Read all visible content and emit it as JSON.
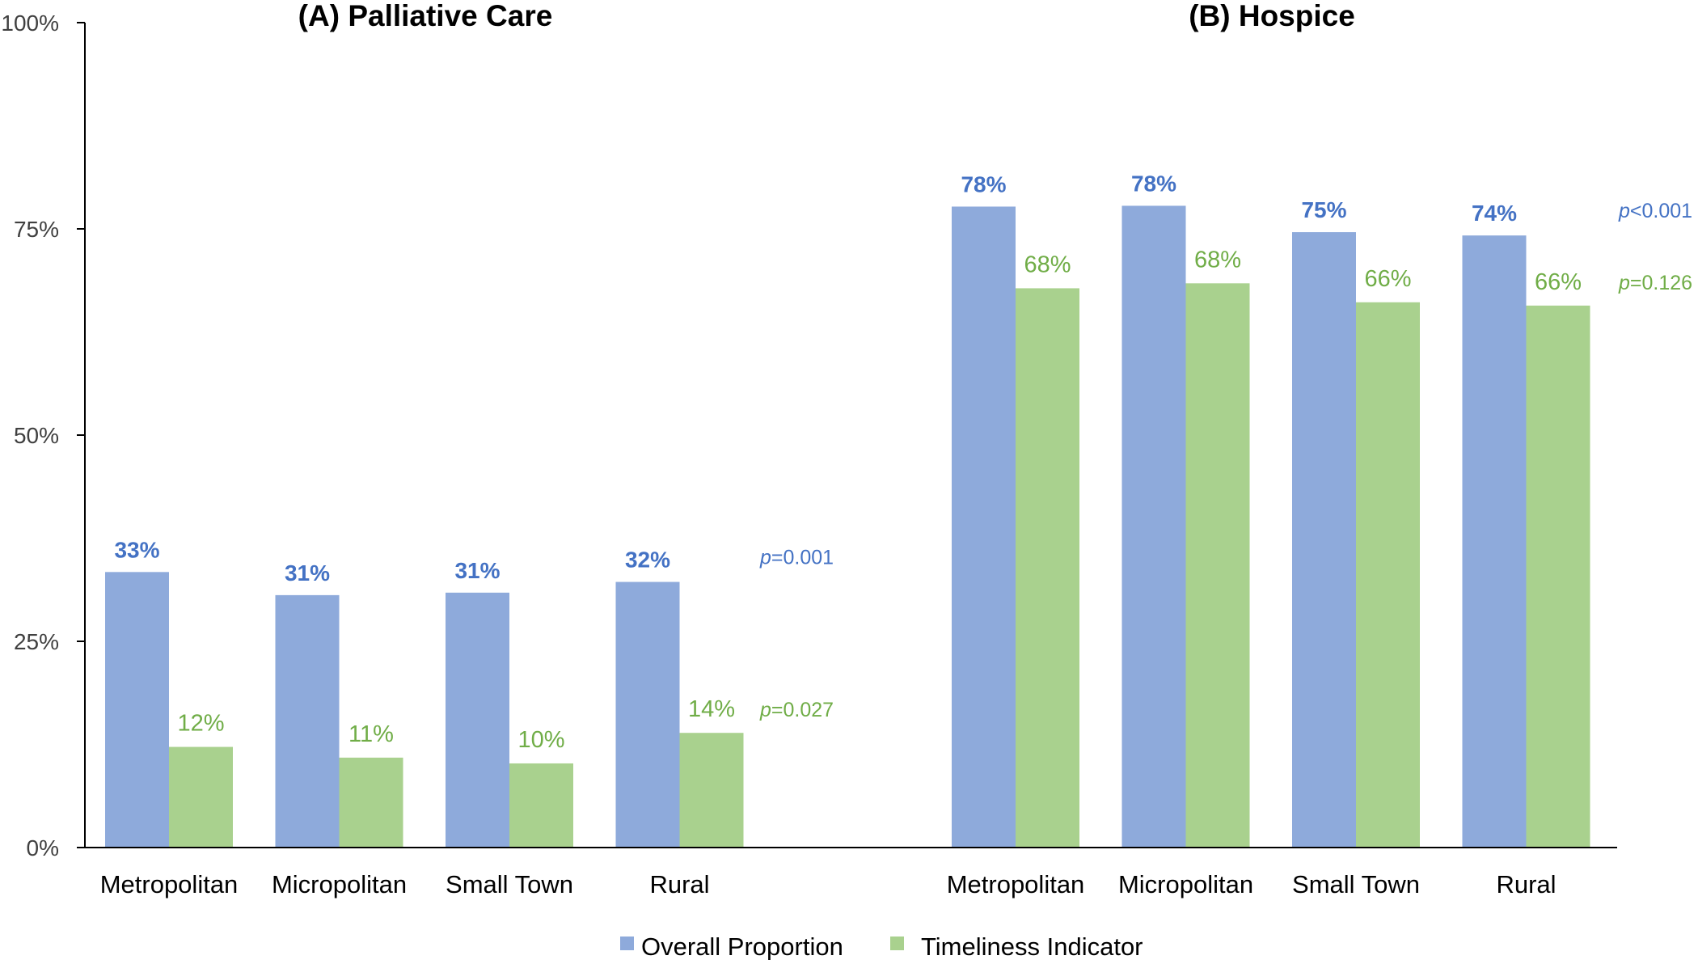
{
  "colors": {
    "overall": "#8eaadb",
    "timely": "#a9d18e",
    "overall_label": "#4472c4",
    "timely_label": "#70ad47",
    "axis": "#000000"
  },
  "chart_data": {
    "type": "bar",
    "ylim": [
      0,
      100
    ],
    "y_ticks": [
      {
        "value": 0,
        "label": "0%"
      },
      {
        "value": 25,
        "label": "25%"
      },
      {
        "value": 50,
        "label": "50%"
      },
      {
        "value": 75,
        "label": "75%"
      },
      {
        "value": 100,
        "label": "100%"
      }
    ],
    "legend": {
      "position": "bottom-center",
      "items": [
        "Overall Proportion",
        "Timeliness Indicator"
      ]
    },
    "panels": [
      {
        "title": "(A) Palliative Care",
        "categories": [
          "Metropolitan",
          "Micropolitan",
          "Small Town",
          "Rural"
        ],
        "series": [
          {
            "name": "Overall Proportion",
            "values": [
              33.4,
              30.6,
              30.9,
              32.2
            ],
            "labels": [
              "33%",
              "31%",
              "31%",
              "32%"
            ]
          },
          {
            "name": "Timeliness Indicator",
            "values": [
              12.2,
              10.9,
              10.2,
              13.9
            ],
            "labels": [
              "12%",
              "11%",
              "10%",
              "14%"
            ]
          }
        ],
        "pvalues": [
          {
            "series": "Overall Proportion",
            "italic": "p",
            "rest": "=0.001"
          },
          {
            "series": "Timeliness Indicator",
            "italic": "p",
            "rest": "=0.027"
          }
        ]
      },
      {
        "title": "(B) Hospice",
        "categories": [
          "Metropolitan",
          "Micropolitan",
          "Small Town",
          "Rural"
        ],
        "series": [
          {
            "name": "Overall Proportion",
            "values": [
              77.7,
              77.8,
              74.6,
              74.2
            ],
            "labels": [
              "78%",
              "78%",
              "75%",
              "74%"
            ]
          },
          {
            "name": "Timeliness Indicator",
            "values": [
              67.8,
              68.4,
              66.1,
              65.7
            ],
            "labels": [
              "68%",
              "68%",
              "66%",
              "66%"
            ]
          }
        ],
        "pvalues": [
          {
            "series": "Overall Proportion",
            "italic": "p",
            "rest": "<0.001"
          },
          {
            "series": "Timeliness Indicator",
            "italic": "p",
            "rest": "=0.126"
          }
        ]
      }
    ]
  }
}
